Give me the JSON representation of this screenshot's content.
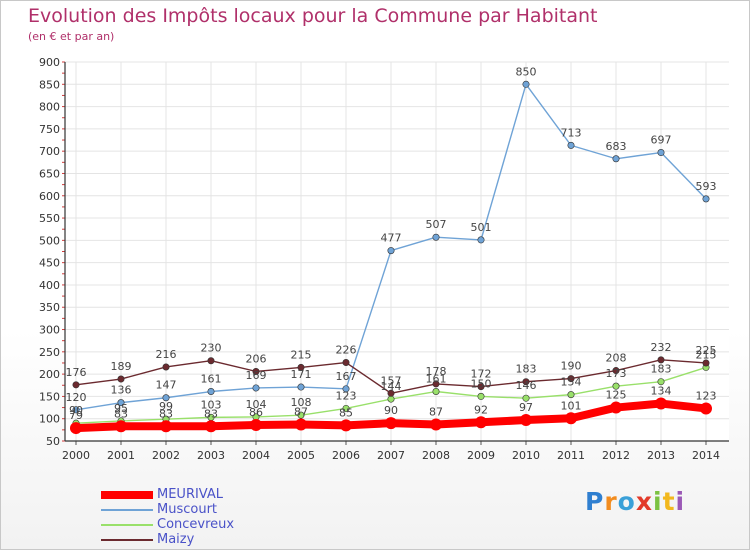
{
  "title": "Evolution des Impôts locaux pour la Commune par Habitant",
  "subtitle": "(en € et par an)",
  "logo": "Proxiti",
  "colors": {
    "title": "#b0306a",
    "meurival": "#ff0000",
    "muscourt": "#6fa3d6",
    "concevreux": "#99e06a",
    "maizy": "#6b2a2f",
    "legend_text": "#4a52c8"
  },
  "chart_data": {
    "type": "line",
    "title": "Evolution des Impôts locaux pour la Commune par Habitant",
    "subtitle": "(en € et par an)",
    "xlabel": "",
    "ylabel": "",
    "ylim": [
      50,
      900
    ],
    "yticks": [
      50,
      100,
      150,
      200,
      250,
      300,
      350,
      400,
      450,
      500,
      550,
      600,
      650,
      700,
      750,
      800,
      850,
      900
    ],
    "categories": [
      "2000",
      "2001",
      "2002",
      "2003",
      "2004",
      "2005",
      "2006",
      "2007",
      "2008",
      "2009",
      "2010",
      "2011",
      "2012",
      "2013",
      "2014"
    ],
    "legend_position": "bottom-left",
    "series": [
      {
        "name": "MEURIVAL",
        "color": "#ff0000",
        "values": [
          79,
          83,
          83,
          83,
          86,
          87,
          85,
          90,
          87,
          92,
          97,
          101,
          125,
          134,
          123
        ]
      },
      {
        "name": "Muscourt",
        "color": "#6fa3d6",
        "values": [
          120,
          136,
          147,
          161,
          169,
          171,
          167,
          477,
          507,
          501,
          850,
          713,
          683,
          697,
          593
        ]
      },
      {
        "name": "Concevreux",
        "color": "#99e06a",
        "values": [
          90,
          95,
          99,
          103,
          104,
          108,
          123,
          144,
          161,
          150,
          146,
          154,
          173,
          183,
          215
        ]
      },
      {
        "name": "Maizy",
        "color": "#6b2a2f",
        "values": [
          176,
          189,
          216,
          230,
          206,
          215,
          226,
          157,
          178,
          172,
          183,
          190,
          208,
          232,
          225
        ]
      }
    ],
    "data_labels": [
      [
        "79",
        "83",
        "83",
        "83",
        "86",
        "87",
        "85",
        "90",
        "87",
        "92",
        "97",
        "101",
        "125",
        "134",
        "123"
      ],
      [
        "120",
        "136",
        "147",
        "161",
        "169",
        "171",
        "167",
        "477",
        "507",
        "501",
        "850",
        "713",
        "683",
        "697",
        "593"
      ],
      [
        "90",
        "95",
        "99",
        "103",
        "104",
        "108",
        "123",
        "144",
        "161",
        "150",
        "146",
        "154",
        "173",
        "183",
        "215"
      ],
      [
        "176",
        "189",
        "216",
        "230",
        "206",
        "215",
        "226",
        "157",
        "178",
        "172",
        "183",
        "190",
        "208",
        "232",
        "225"
      ]
    ]
  }
}
